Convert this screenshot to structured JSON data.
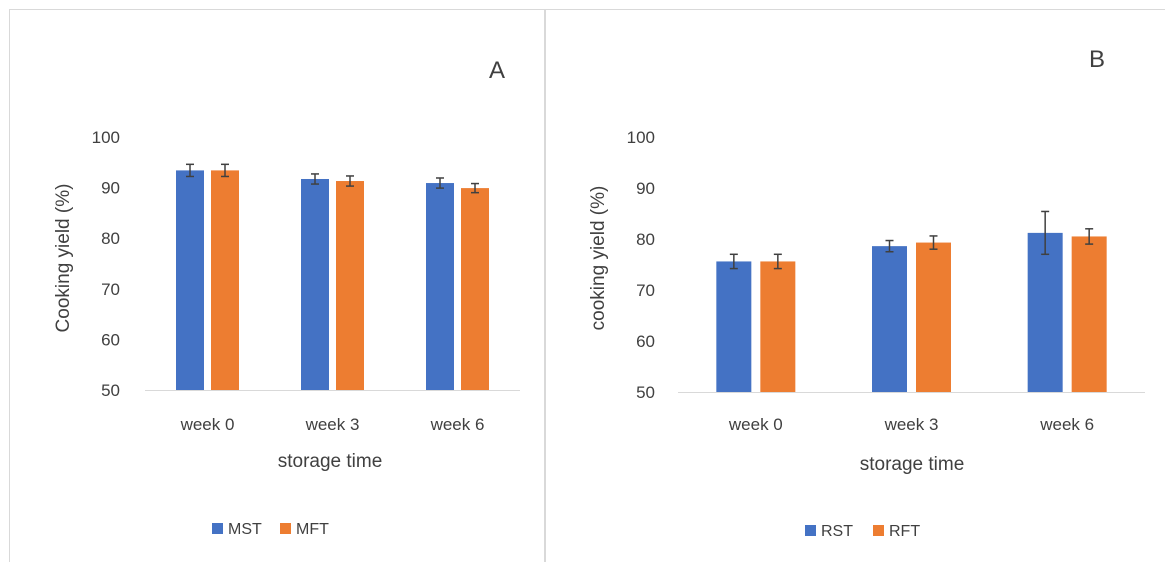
{
  "chart_data": [
    {
      "type": "bar",
      "panel_label": "A",
      "categories": [
        "week 0",
        "week 3",
        "week 6"
      ],
      "series": [
        {
          "name": "MST",
          "values": [
            93.4,
            91.7,
            90.9
          ],
          "errors": [
            1.2,
            1.0,
            1.0
          ]
        },
        {
          "name": "MFT",
          "values": [
            93.4,
            91.3,
            89.9
          ],
          "errors": [
            1.2,
            1.0,
            0.9
          ]
        }
      ],
      "xlabel": "storage time",
      "ylabel": "Cooking yield (%)",
      "ylim": [
        50,
        100
      ],
      "yticks": [
        50,
        60,
        70,
        80,
        90,
        100
      ],
      "grid": false,
      "legend": "bottom"
    },
    {
      "type": "bar",
      "panel_label": "B",
      "categories": [
        "week 0",
        "week 3",
        "week 6"
      ],
      "series": [
        {
          "name": "RST",
          "values": [
            75.6,
            78.6,
            81.2
          ],
          "errors": [
            1.4,
            1.1,
            4.2
          ]
        },
        {
          "name": "RFT",
          "values": [
            75.6,
            79.3,
            80.5
          ],
          "errors": [
            1.4,
            1.3,
            1.5
          ]
        }
      ],
      "xlabel": "storage time",
      "ylabel": "cooking yield (%)",
      "ylim": [
        50,
        100
      ],
      "yticks": [
        50,
        60,
        70,
        80,
        90,
        100
      ],
      "grid": false,
      "legend": "bottom"
    }
  ],
  "colors": {
    "series1": "#4472C4",
    "series2": "#ED7D31",
    "axis": "#D9D9D9",
    "error": "#404040",
    "frame": "#D9D9D9"
  }
}
